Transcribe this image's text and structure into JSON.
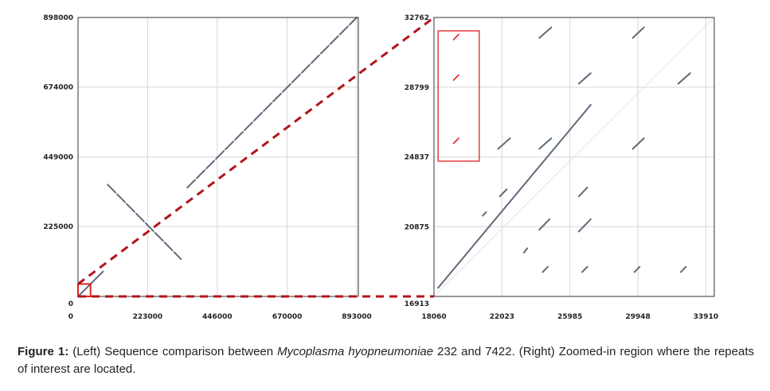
{
  "chart_data": [
    {
      "type": "scatter",
      "title": "",
      "xlabel": "",
      "ylabel": "",
      "xlim": [
        0,
        898000
      ],
      "ylim": [
        0,
        898000
      ],
      "x_ticks": [
        "0",
        "223000",
        "446000",
        "670000",
        "893000"
      ],
      "y_ticks": [
        "0",
        "225000",
        "449000",
        "674000",
        "898000"
      ],
      "grid": true,
      "series": [
        {
          "segments": [
            [
              [
                350000,
                350000
              ],
              [
                893000,
                898000
              ]
            ],
            [
              [
                95000,
                360000
              ],
              [
                330000,
                120000
              ]
            ],
            [
              [
                5000,
                5000
              ],
              [
                80000,
                80000
              ]
            ]
          ]
        }
      ],
      "highlight_box": {
        "x": [
          0,
          40000
        ],
        "y": [
          0,
          40000
        ]
      }
    },
    {
      "type": "scatter",
      "title": "",
      "xlabel": "",
      "ylabel": "",
      "xlim": [
        18060,
        34400
      ],
      "ylim": [
        16913,
        32762
      ],
      "x_ticks": [
        "18060",
        "22023",
        "25985",
        "29948",
        "33910"
      ],
      "y_ticks": [
        "16913",
        "20875",
        "24837",
        "28799",
        "32762"
      ],
      "grid": true,
      "series": [
        {
          "segments": [
            [
              [
                18300,
                17400
              ],
              [
                27200,
                27800
              ]
            ],
            [
              [
                21800,
                25300
              ],
              [
                22500,
                25900
              ]
            ],
            [
              [
                24200,
                25300
              ],
              [
                24900,
                25900
              ]
            ],
            [
              [
                24200,
                31600
              ],
              [
                24900,
                32200
              ]
            ],
            [
              [
                29650,
                31600
              ],
              [
                30300,
                32200
              ]
            ],
            [
              [
                26500,
                29000
              ],
              [
                27200,
                29600
              ]
            ],
            [
              [
                32300,
                29000
              ],
              [
                33000,
                29600
              ]
            ],
            [
              [
                29650,
                25300
              ],
              [
                30300,
                25900
              ]
            ],
            [
              [
                21900,
                22600
              ],
              [
                22300,
                23000
              ]
            ],
            [
              [
                20900,
                21500
              ],
              [
                21100,
                21700
              ]
            ],
            [
              [
                26500,
                22600
              ],
              [
                27000,
                23100
              ]
            ],
            [
              [
                24200,
                20700
              ],
              [
                24800,
                21300
              ]
            ],
            [
              [
                26500,
                20600
              ],
              [
                27200,
                21300
              ]
            ],
            [
              [
                23300,
                19400
              ],
              [
                23500,
                19650
              ]
            ],
            [
              [
                24400,
                18300
              ],
              [
                24700,
                18600
              ]
            ],
            [
              [
                26700,
                18300
              ],
              [
                27000,
                18600
              ]
            ],
            [
              [
                29750,
                18300
              ],
              [
                30050,
                18600
              ]
            ],
            [
              [
                32450,
                18300
              ],
              [
                32750,
                18600
              ]
            ]
          ]
        },
        {
          "name": "repeats",
          "color": "#e02020",
          "segments": [
            [
              [
                19200,
                31500
              ],
              [
                19500,
                31800
              ]
            ],
            [
              [
                19200,
                29200
              ],
              [
                19500,
                29500
              ]
            ],
            [
              [
                19200,
                25600
              ],
              [
                19500,
                25900
              ]
            ]
          ]
        }
      ],
      "highlight_box": {
        "x": [
          18300,
          20700
        ],
        "y": [
          24600,
          32000
        ]
      }
    }
  ],
  "colors": {
    "line": "#5d6a78",
    "highlight": "#e02020",
    "connector": "#b3141a",
    "grid": "#d6d6d6"
  },
  "caption": {
    "label": "Figure 1:",
    "text_1": " (Left) Sequence comparison between ",
    "species": "Mycoplasma hyopneumoniae",
    "text_2": " 232 and 7422. (Right) Zoomed-in region where the repeats of interest are located."
  }
}
